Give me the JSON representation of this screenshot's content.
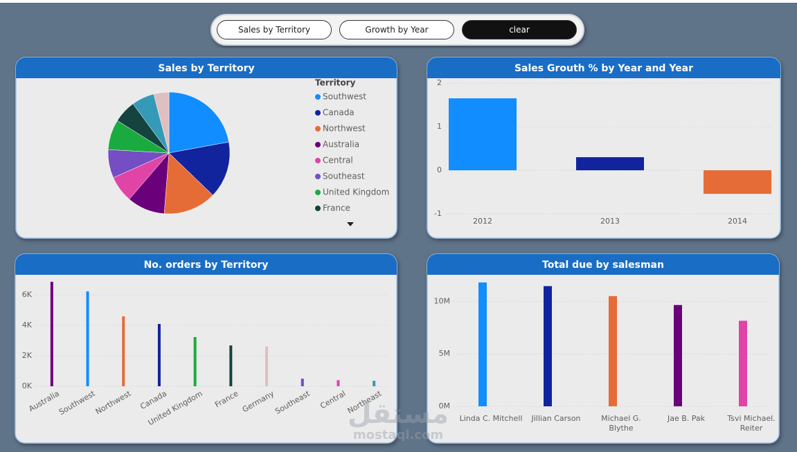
{
  "buttons": [
    "Sales by Territory",
    "Growth by Year",
    "clear"
  ],
  "chart_data": [
    {
      "type": "pie",
      "title": "Sales by Territory",
      "legend_title": "Territory",
      "categories": [
        "Southwest",
        "Canada",
        "Northwest",
        "Australia",
        "Central",
        "Southeast",
        "United Kingdom",
        "France",
        null,
        null
      ],
      "values": [
        22,
        15,
        14,
        10,
        7,
        7.5,
        8,
        6,
        6,
        4
      ],
      "colors": [
        "#118dff",
        "#12239e",
        "#e66c37",
        "#6b007b",
        "#e044a7",
        "#744ec2",
        "#1aab40",
        "#15433f",
        "#3599b8",
        "#dfbfbf"
      ]
    },
    {
      "type": "bar",
      "title": "Sales Grouth % by Year and Year",
      "categories": [
        "2012",
        "2013",
        "2014"
      ],
      "values": [
        1.65,
        0.3,
        -0.54
      ],
      "colors": [
        "#118dff",
        "#12239e",
        "#e66c37"
      ],
      "ylim": [
        -1,
        2
      ],
      "yticks": [
        -1,
        0,
        1,
        2
      ],
      "grid": true
    },
    {
      "type": "bar",
      "title": "No. orders by Territory",
      "categories": [
        "Australia",
        "Southwest",
        "Northwest",
        "Canada",
        "United Kingdom",
        "France",
        "Germany",
        "Southeast",
        "Central",
        "Northeast"
      ],
      "values": [
        6860,
        6230,
        4590,
        4090,
        3230,
        2680,
        2620,
        500,
        400,
        360
      ],
      "colors": [
        "#6b007b",
        "#118dff",
        "#e66c37",
        "#12239e",
        "#1aab40",
        "#15433f",
        "#dfbfbf",
        "#744ec2",
        "#e044a7",
        "#3599b8"
      ],
      "ylim": [
        0,
        7000
      ],
      "yticks": [
        {
          "value": 0,
          "label": "0K"
        },
        {
          "value": 2000,
          "label": "2K"
        },
        {
          "value": 4000,
          "label": "4K"
        },
        {
          "value": 6000,
          "label": "6K"
        }
      ],
      "grid": true
    },
    {
      "type": "bar",
      "title": "Total due by salesman",
      "categories": [
        "Linda C. Mitchell",
        "Jillian Carson",
        "Michael G. Blythe",
        "Jae B. Pak",
        "Tsvi Michael. Reiter"
      ],
      "values": [
        11800000,
        11450000,
        10500000,
        9650000,
        8150000
      ],
      "colors": [
        "#118dff",
        "#12239e",
        "#e66c37",
        "#6b007b",
        "#e044a7"
      ],
      "ylim": [
        0,
        12000000
      ],
      "yticks": [
        {
          "value": 0,
          "label": "0M"
        },
        {
          "value": 5000000,
          "label": "5M"
        },
        {
          "value": 10000000,
          "label": "10M"
        }
      ],
      "grid": true
    }
  ],
  "watermark": {
    "logo": "مستقل",
    "site": "mostaql.com"
  }
}
